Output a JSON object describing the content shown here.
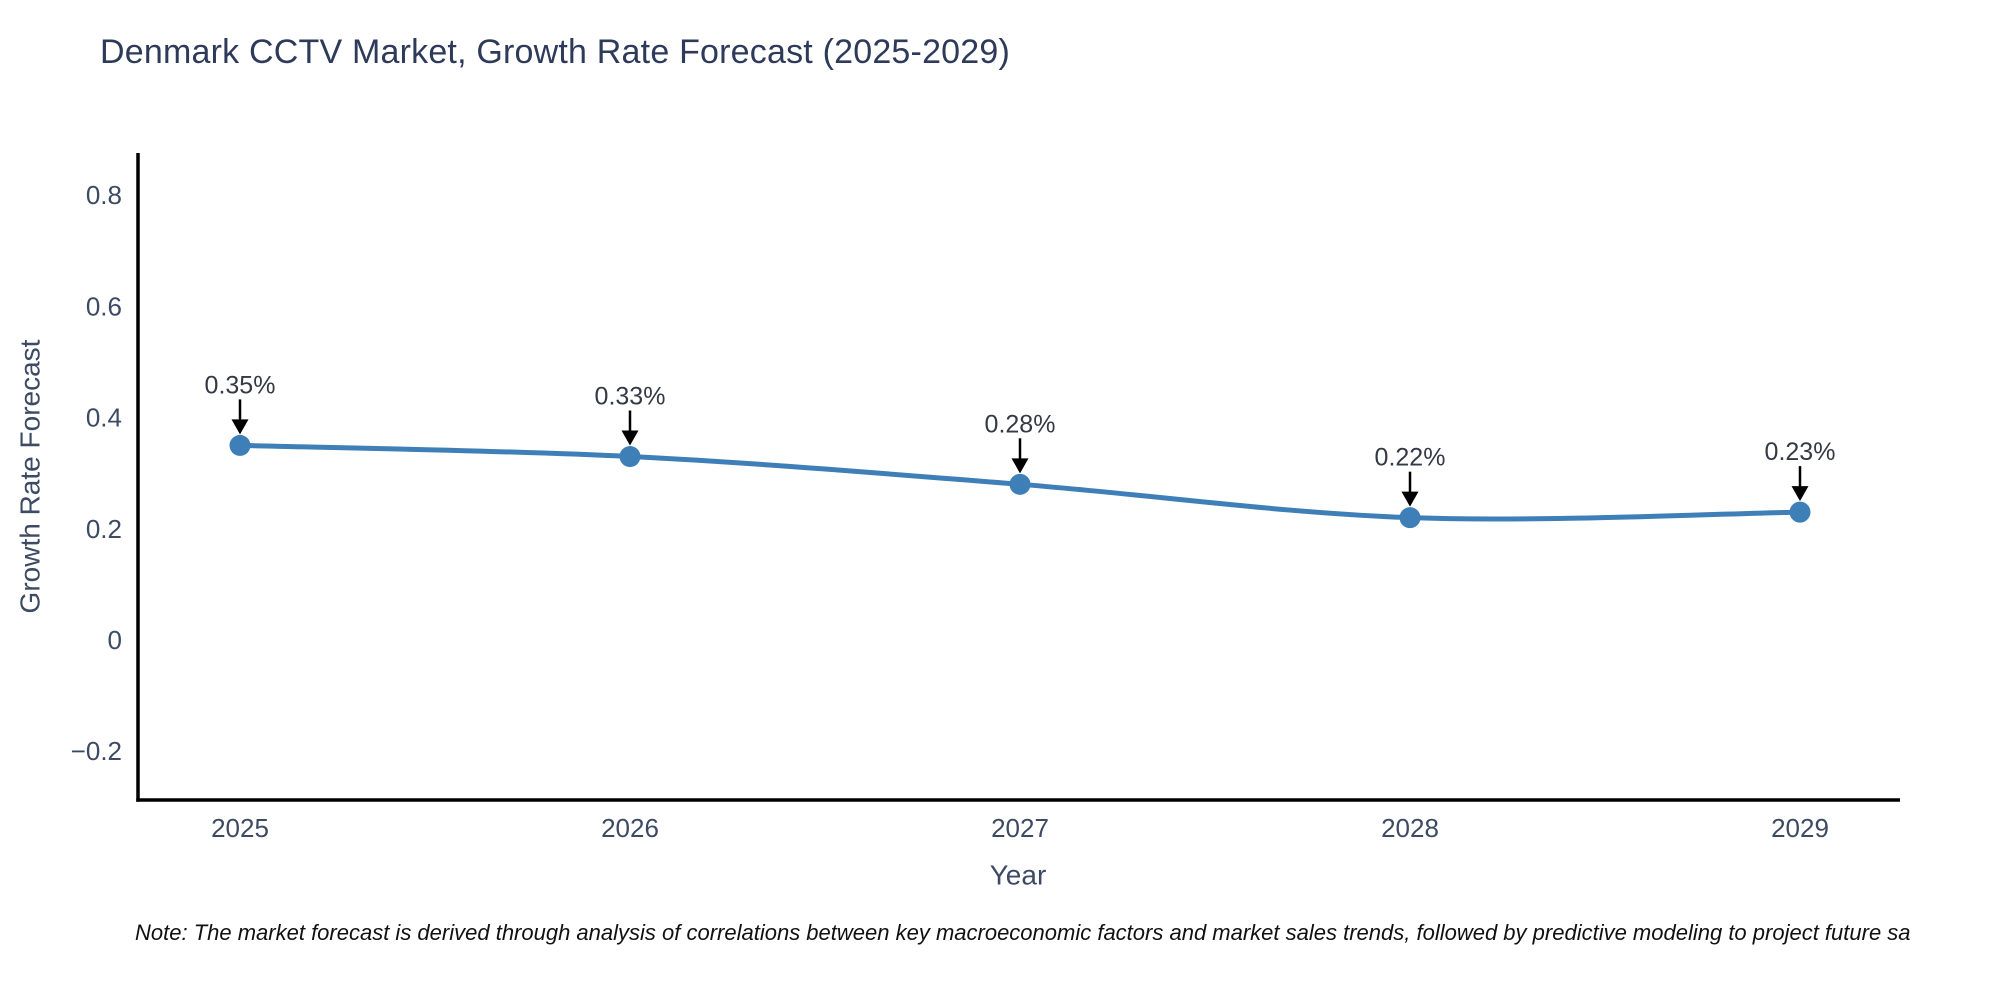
{
  "title": "Denmark CCTV Market, Growth Rate Forecast (2025-2029)",
  "footnote": "Note: The market forecast is derived through analysis of correlations between key macroeconomic factors and market sales trends, followed by predictive modeling to project future sa",
  "chart_data": {
    "type": "line",
    "title": "Denmark CCTV Market, Growth Rate Forecast (2025-2029)",
    "xlabel": "Year",
    "ylabel": "Growth Rate Forecast",
    "categories": [
      2025,
      2026,
      2027,
      2028,
      2029
    ],
    "x_tick_labels": [
      "2025",
      "2026",
      "2027",
      "2028",
      "2029"
    ],
    "series": [
      {
        "name": "Growth Rate Forecast",
        "values": [
          0.35,
          0.33,
          0.28,
          0.22,
          0.23
        ]
      }
    ],
    "point_labels": [
      "0.35%",
      "0.33%",
      "0.28%",
      "0.22%",
      "0.23%"
    ],
    "y_ticks": [
      0.8,
      0.6,
      0.4,
      0.2,
      0,
      -0.2
    ],
    "y_tick_labels": [
      "0.8",
      "0.6",
      "0.4",
      "0.2",
      "0",
      "−0.2"
    ],
    "ylim": [
      -0.29,
      0.88
    ],
    "grid": false,
    "legend_position": "none",
    "marker_annotation_style": "text-with-down-arrow",
    "colors": {
      "line": "#3f7fb7",
      "marker": "#3f7fb7",
      "axis": "#000000",
      "tick_text": "#3d4a63",
      "axis_title_text": "#3d4a63",
      "title_text": "#2e3a59",
      "annotation_text": "#333a45",
      "arrow": "#000000",
      "background": "#ffffff"
    }
  }
}
